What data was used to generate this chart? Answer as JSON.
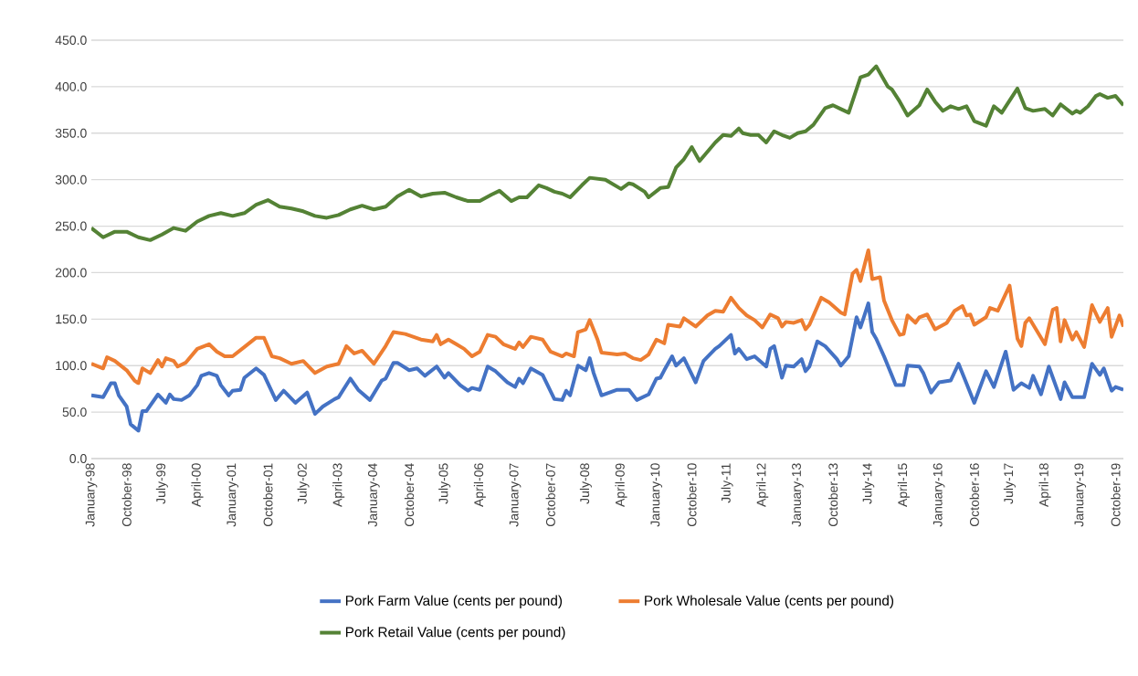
{
  "chart_data": {
    "type": "line",
    "xlim": [
      "1998-01",
      "2019-12"
    ],
    "ylim": [
      0,
      450
    ],
    "yticks": [
      {
        "value": 0,
        "label": "0.0"
      },
      {
        "value": 50,
        "label": "50.0"
      },
      {
        "value": 100,
        "label": "100.0"
      },
      {
        "value": 150,
        "label": "150.0"
      },
      {
        "value": 200,
        "label": "200.0"
      },
      {
        "value": 250,
        "label": "250.0"
      },
      {
        "value": 300,
        "label": "300.0"
      },
      {
        "value": 350,
        "label": "350.0"
      },
      {
        "value": 400,
        "label": "400.0"
      },
      {
        "value": 450,
        "label": "450.0"
      }
    ],
    "xticks": [
      {
        "value": "1998-01",
        "label": "January-98"
      },
      {
        "value": "1998-10",
        "label": "October-98"
      },
      {
        "value": "1999-07",
        "label": "July-99"
      },
      {
        "value": "2000-04",
        "label": "April-00"
      },
      {
        "value": "2001-01",
        "label": "January-01"
      },
      {
        "value": "2001-10",
        "label": "October-01"
      },
      {
        "value": "2002-07",
        "label": "July-02"
      },
      {
        "value": "2003-04",
        "label": "April-03"
      },
      {
        "value": "2004-01",
        "label": "January-04"
      },
      {
        "value": "2004-10",
        "label": "October-04"
      },
      {
        "value": "2005-07",
        "label": "July-05"
      },
      {
        "value": "2006-04",
        "label": "April-06"
      },
      {
        "value": "2007-01",
        "label": "January-07"
      },
      {
        "value": "2007-10",
        "label": "October-07"
      },
      {
        "value": "2008-07",
        "label": "July-08"
      },
      {
        "value": "2009-04",
        "label": "April-09"
      },
      {
        "value": "2010-01",
        "label": "January-10"
      },
      {
        "value": "2010-10",
        "label": "October-10"
      },
      {
        "value": "2011-07",
        "label": "July-11"
      },
      {
        "value": "2012-04",
        "label": "April-12"
      },
      {
        "value": "2013-01",
        "label": "January-13"
      },
      {
        "value": "2013-10",
        "label": "October-13"
      },
      {
        "value": "2014-07",
        "label": "July-14"
      },
      {
        "value": "2015-04",
        "label": "April-15"
      },
      {
        "value": "2016-01",
        "label": "January-16"
      },
      {
        "value": "2016-10",
        "label": "October-16"
      },
      {
        "value": "2017-07",
        "label": "July-17"
      },
      {
        "value": "2018-04",
        "label": "April-18"
      },
      {
        "value": "2019-01",
        "label": "January-19"
      },
      {
        "value": "2019-10",
        "label": "October-19"
      }
    ],
    "grid": "y",
    "legend": "bottom",
    "marker": "none",
    "line_style": "solid",
    "series": [
      {
        "name": "Pork Farm Value (cents per pound)",
        "color": "#4472c4",
        "x": [
          "1998-01",
          "1998-04",
          "1998-06",
          "1998-07",
          "1998-08",
          "1998-10",
          "1998-11",
          "1999-01",
          "1999-02",
          "1999-03",
          "1999-06",
          "1999-08",
          "1999-09",
          "1999-10",
          "1999-12",
          "2000-02",
          "2000-04",
          "2000-05",
          "2000-07",
          "2000-09",
          "2000-10",
          "2000-12",
          "2001-01",
          "2001-03",
          "2001-04",
          "2001-07",
          "2001-09",
          "2001-12",
          "2002-02",
          "2002-05",
          "2002-08",
          "2002-10",
          "2002-12",
          "2003-03",
          "2003-04",
          "2003-07",
          "2003-09",
          "2003-12",
          "2004-03",
          "2004-04",
          "2004-06",
          "2004-07",
          "2004-10",
          "2004-12",
          "2005-02",
          "2005-05",
          "2005-07",
          "2005-08",
          "2005-11",
          "2006-01",
          "2006-02",
          "2006-04",
          "2006-06",
          "2006-08",
          "2006-11",
          "2007-01",
          "2007-02",
          "2007-03",
          "2007-05",
          "2007-08",
          "2007-11",
          "2008-01",
          "2008-02",
          "2008-03",
          "2008-05",
          "2008-07",
          "2008-08",
          "2008-09",
          "2008-11",
          "2009-03",
          "2009-06",
          "2009-08",
          "2009-11",
          "2010-01",
          "2010-02",
          "2010-03",
          "2010-05",
          "2010-06",
          "2010-08",
          "2010-11",
          "2011-01",
          "2011-04",
          "2011-05",
          "2011-08",
          "2011-09",
          "2011-10",
          "2011-12",
          "2012-02",
          "2012-05",
          "2012-06",
          "2012-07",
          "2012-09",
          "2012-10",
          "2012-12",
          "2013-02",
          "2013-03",
          "2013-04",
          "2013-06",
          "2013-08",
          "2013-11",
          "2013-12",
          "2014-02",
          "2014-04",
          "2014-05",
          "2014-07",
          "2014-08",
          "2014-09",
          "2014-11",
          "2015-02",
          "2015-04",
          "2015-05",
          "2015-08",
          "2015-09",
          "2015-11",
          "2016-01",
          "2016-04",
          "2016-06",
          "2016-08",
          "2016-10",
          "2017-01",
          "2017-03",
          "2017-06",
          "2017-08",
          "2017-10",
          "2017-12",
          "2018-01",
          "2018-03",
          "2018-05",
          "2018-08",
          "2018-09",
          "2018-11",
          "2019-02",
          "2019-04",
          "2019-06",
          "2019-07",
          "2019-09",
          "2019-10",
          "2019-12"
        ],
        "values": [
          68,
          66,
          81,
          81,
          68,
          56,
          37,
          30,
          51,
          51,
          69,
          60,
          69,
          64,
          63,
          68,
          79,
          89,
          92,
          89,
          79,
          68,
          73,
          74,
          87,
          97,
          90,
          63,
          73,
          60,
          71,
          48,
          56,
          64,
          66,
          86,
          74,
          63,
          84,
          86,
          103,
          103,
          95,
          97,
          89,
          99,
          87,
          92,
          79,
          73,
          76,
          74,
          99,
          94,
          82,
          77,
          86,
          81,
          97,
          90,
          64,
          63,
          73,
          68,
          100,
          95,
          108,
          92,
          68,
          74,
          74,
          63,
          69,
          86,
          87,
          95,
          110,
          100,
          108,
          82,
          105,
          118,
          121,
          133,
          113,
          118,
          107,
          110,
          99,
          118,
          121,
          87,
          100,
          99,
          107,
          94,
          99,
          126,
          121,
          107,
          100,
          110,
          152,
          141,
          167,
          136,
          129,
          110,
          79,
          79,
          100,
          99,
          92,
          71,
          82,
          84,
          102,
          81,
          60,
          94,
          77,
          115,
          74,
          81,
          76,
          89,
          69,
          99,
          64,
          82,
          66,
          66,
          102,
          90,
          97,
          73,
          77,
          74
        ]
      },
      {
        "name": "Pork Wholesale Value (cents per pound)",
        "color": "#ed7d31",
        "x": [
          "1998-01",
          "1998-04",
          "1998-05",
          "1998-07",
          "1998-10",
          "1998-12",
          "1999-01",
          "1999-02",
          "1999-04",
          "1999-06",
          "1999-07",
          "1999-08",
          "1999-10",
          "1999-11",
          "2000-01",
          "2000-04",
          "2000-07",
          "2000-09",
          "2000-11",
          "2001-01",
          "2001-04",
          "2001-07",
          "2001-09",
          "2001-11",
          "2002-01",
          "2002-04",
          "2002-07",
          "2002-10",
          "2003-01",
          "2003-04",
          "2003-06",
          "2003-08",
          "2003-10",
          "2004-01",
          "2004-04",
          "2004-06",
          "2004-09",
          "2005-01",
          "2005-04",
          "2005-05",
          "2005-06",
          "2005-08",
          "2005-10",
          "2005-12",
          "2006-02",
          "2006-04",
          "2006-06",
          "2006-08",
          "2006-10",
          "2007-01",
          "2007-02",
          "2007-03",
          "2007-05",
          "2007-08",
          "2007-10",
          "2008-01",
          "2008-02",
          "2008-04",
          "2008-05",
          "2008-07",
          "2008-08",
          "2008-10",
          "2008-11",
          "2009-03",
          "2009-05",
          "2009-07",
          "2009-09",
          "2009-11",
          "2010-01",
          "2010-03",
          "2010-04",
          "2010-07",
          "2010-08",
          "2010-11",
          "2011-02",
          "2011-04",
          "2011-06",
          "2011-08",
          "2011-10",
          "2011-12",
          "2012-02",
          "2012-04",
          "2012-06",
          "2012-08",
          "2012-09",
          "2012-10",
          "2012-12",
          "2013-02",
          "2013-03",
          "2013-04",
          "2013-07",
          "2013-09",
          "2013-12",
          "2014-01",
          "2014-03",
          "2014-04",
          "2014-05",
          "2014-07",
          "2014-08",
          "2014-10",
          "2014-11",
          "2015-01",
          "2015-03",
          "2015-04",
          "2015-05",
          "2015-07",
          "2015-08",
          "2015-10",
          "2015-12",
          "2016-03",
          "2016-05",
          "2016-07",
          "2016-08",
          "2016-09",
          "2016-10",
          "2017-01",
          "2017-02",
          "2017-04",
          "2017-07",
          "2017-09",
          "2017-10",
          "2017-11",
          "2017-12",
          "2018-04",
          "2018-06",
          "2018-07",
          "2018-08",
          "2018-09",
          "2018-11",
          "2018-12",
          "2019-02",
          "2019-04",
          "2019-06",
          "2019-08",
          "2019-09",
          "2019-11",
          "2019-12"
        ],
        "values": [
          102,
          97,
          109,
          105,
          95,
          84,
          81,
          97,
          92,
          106,
          99,
          108,
          105,
          99,
          103,
          118,
          123,
          115,
          110,
          110,
          120,
          130,
          130,
          110,
          108,
          102,
          105,
          92,
          99,
          102,
          121,
          113,
          116,
          102,
          121,
          136,
          134,
          128,
          126,
          133,
          123,
          128,
          123,
          118,
          110,
          115,
          133,
          131,
          123,
          118,
          125,
          120,
          131,
          128,
          115,
          110,
          113,
          110,
          136,
          139,
          149,
          128,
          114,
          112,
          113,
          108,
          106,
          112,
          128,
          124,
          144,
          142,
          151,
          142,
          154,
          159,
          158,
          173,
          162,
          154,
          149,
          141,
          155,
          151,
          142,
          147,
          146,
          149,
          139,
          144,
          173,
          168,
          157,
          155,
          199,
          203,
          191,
          224,
          193,
          195,
          170,
          149,
          133,
          134,
          154,
          146,
          152,
          155,
          139,
          146,
          159,
          164,
          154,
          155,
          144,
          152,
          162,
          159,
          186,
          129,
          121,
          146,
          151,
          123,
          160,
          162,
          126,
          149,
          128,
          136,
          120,
          165,
          147,
          162,
          131,
          154,
          142
        ]
      },
      {
        "name": "Pork Retail Value (cents per pound)",
        "color": "#548235",
        "x": [
          "1998-01",
          "1998-04",
          "1998-07",
          "1998-10",
          "1999-01",
          "1999-04",
          "1999-07",
          "1999-10",
          "2000-01",
          "2000-04",
          "2000-07",
          "2000-10",
          "2001-01",
          "2001-04",
          "2001-07",
          "2001-10",
          "2002-01",
          "2002-04",
          "2002-07",
          "2002-10",
          "2003-01",
          "2003-04",
          "2003-07",
          "2003-10",
          "2004-01",
          "2004-04",
          "2004-07",
          "2004-10",
          "2005-01",
          "2005-04",
          "2005-07",
          "2005-10",
          "2006-01",
          "2006-04",
          "2006-07",
          "2006-09",
          "2006-12",
          "2007-02",
          "2007-04",
          "2007-07",
          "2007-09",
          "2007-11",
          "2008-01",
          "2008-03",
          "2008-06",
          "2008-08",
          "2008-12",
          "2009-04",
          "2009-06",
          "2009-07",
          "2009-10",
          "2009-11",
          "2010-02",
          "2010-04",
          "2010-06",
          "2010-08",
          "2010-10",
          "2010-12",
          "2011-02",
          "2011-04",
          "2011-06",
          "2011-08",
          "2011-10",
          "2011-11",
          "2012-01",
          "2012-03",
          "2012-05",
          "2012-07",
          "2012-09",
          "2012-11",
          "2013-01",
          "2013-03",
          "2013-05",
          "2013-08",
          "2013-10",
          "2013-12",
          "2014-02",
          "2014-05",
          "2014-07",
          "2014-09",
          "2014-12",
          "2015-01",
          "2015-03",
          "2015-05",
          "2015-08",
          "2015-10",
          "2015-12",
          "2016-02",
          "2016-04",
          "2016-06",
          "2016-08",
          "2016-10",
          "2017-01",
          "2017-03",
          "2017-05",
          "2017-07",
          "2017-09",
          "2017-11",
          "2018-01",
          "2018-04",
          "2018-06",
          "2018-08",
          "2018-11",
          "2018-12",
          "2019-01",
          "2019-03",
          "2019-05",
          "2019-06",
          "2019-08",
          "2019-10",
          "2019-12"
        ],
        "values": [
          248,
          238,
          244,
          244,
          238,
          235,
          241,
          248,
          245,
          255,
          261,
          264,
          261,
          264,
          273,
          278,
          271,
          269,
          266,
          261,
          259,
          262,
          268,
          272,
          268,
          271,
          282,
          289,
          282,
          285,
          286,
          281,
          277,
          277,
          284,
          288,
          277,
          281,
          281,
          294,
          291,
          287,
          285,
          281,
          294,
          302,
          300,
          290,
          296,
          295,
          287,
          281,
          291,
          292,
          313,
          322,
          335,
          320,
          330,
          340,
          348,
          347,
          355,
          350,
          348,
          348,
          340,
          352,
          348,
          345,
          350,
          352,
          359,
          377,
          380,
          376,
          372,
          410,
          413,
          422,
          400,
          397,
          384,
          369,
          380,
          397,
          384,
          374,
          379,
          376,
          379,
          363,
          358,
          379,
          372,
          385,
          398,
          377,
          374,
          376,
          369,
          381,
          371,
          374,
          372,
          379,
          390,
          392,
          388,
          390,
          380
        ]
      }
    ]
  }
}
